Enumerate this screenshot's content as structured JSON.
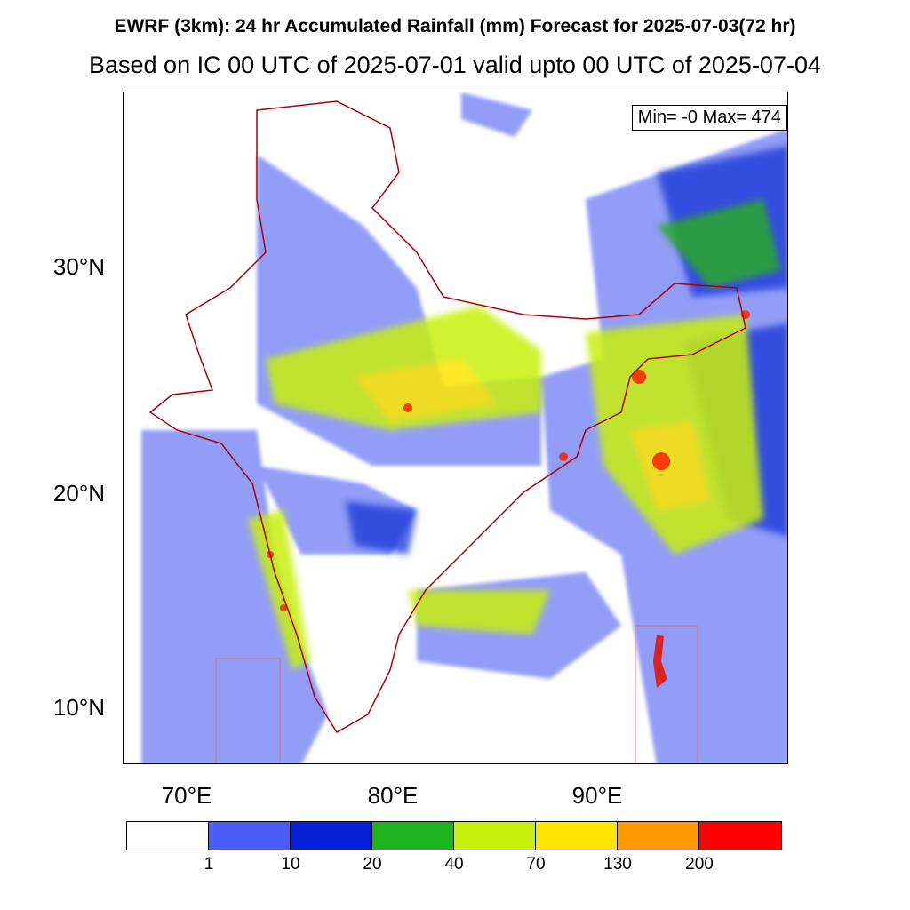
{
  "title": "EWRF (3km): 24 hr Accumulated Rainfall (mm) Forecast for 2025-07-03(72 hr)",
  "subtitle": "Based on IC 00 UTC of 2025-07-01 valid upto 00 UTC of 2025-07-04",
  "minmax": "Min= -0 Max= 474",
  "lat_labels": [
    "30°N",
    "20°N",
    "10°N"
  ],
  "lon_labels": [
    "70°E",
    "80°E",
    "90°E"
  ],
  "colorbar": {
    "colors": [
      "#ffffff",
      "#4b5cf4",
      "#0720d8",
      "#1db31d",
      "#c8f00a",
      "#ffe600",
      "#ff9a00",
      "#ff0000"
    ],
    "labels": [
      "1",
      "10",
      "20",
      "40",
      "70",
      "130",
      "200"
    ]
  }
}
